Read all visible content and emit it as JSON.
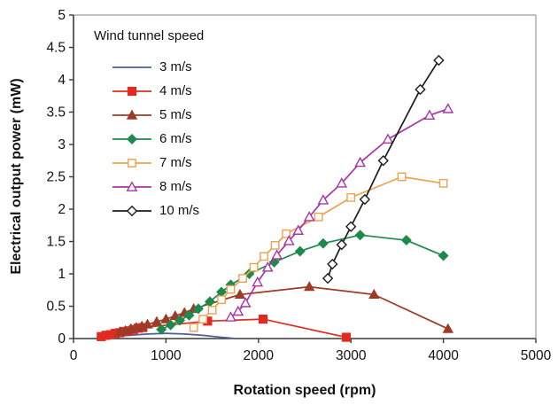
{
  "chart_data": {
    "type": "line",
    "title": "",
    "xlabel": "Rotation speed (rpm)",
    "ylabel": "Electrical output power (mW)",
    "xlim": [
      0,
      5000
    ],
    "ylim": [
      0,
      5
    ],
    "xticks": [
      0,
      1000,
      2000,
      3000,
      4000,
      5000
    ],
    "yticks": [
      0,
      0.5,
      1,
      1.5,
      2,
      2.5,
      3,
      3.5,
      4,
      4.5,
      5
    ],
    "grid": false,
    "legend_title": "Wind tunnel speed",
    "legend_position": "inside top-left",
    "axis_color": "#3a3a3a",
    "border_color": "#9a9a9a",
    "series": [
      {
        "name": "3 m/s",
        "color": "#4f5d99",
        "marker": "none",
        "points": [
          [
            250,
            0.01
          ],
          [
            400,
            0.03
          ],
          [
            600,
            0.05
          ],
          [
            800,
            0.07
          ],
          [
            1000,
            0.08
          ],
          [
            1200,
            0.07
          ],
          [
            1400,
            0.05
          ],
          [
            1600,
            0.02
          ],
          [
            1750,
            0.0
          ]
        ]
      },
      {
        "name": "4 m/s",
        "color": "#e02b20",
        "marker": "square",
        "points": [
          [
            300,
            0.03
          ],
          [
            350,
            0.05
          ],
          [
            400,
            0.06
          ],
          [
            450,
            0.08
          ],
          [
            500,
            0.09
          ],
          [
            550,
            0.11
          ],
          [
            600,
            0.12
          ],
          [
            650,
            0.14
          ],
          [
            700,
            0.16
          ],
          [
            750,
            0.17
          ],
          [
            1450,
            0.27
          ],
          [
            2050,
            0.3
          ],
          [
            2950,
            0.02
          ]
        ]
      },
      {
        "name": "5 m/s",
        "color": "#9e3a28",
        "marker": "triangle",
        "points": [
          [
            500,
            0.1
          ],
          [
            560,
            0.12
          ],
          [
            620,
            0.15
          ],
          [
            680,
            0.17
          ],
          [
            740,
            0.19
          ],
          [
            800,
            0.22
          ],
          [
            900,
            0.26
          ],
          [
            1000,
            0.3
          ],
          [
            1100,
            0.35
          ],
          [
            1200,
            0.4
          ],
          [
            1300,
            0.46
          ],
          [
            1800,
            0.68
          ],
          [
            2550,
            0.8
          ],
          [
            3250,
            0.68
          ],
          [
            4050,
            0.15
          ]
        ]
      },
      {
        "name": "6 m/s",
        "color": "#1d8a4b",
        "marker": "diamond",
        "points": [
          [
            950,
            0.14
          ],
          [
            1050,
            0.21
          ],
          [
            1150,
            0.28
          ],
          [
            1250,
            0.36
          ],
          [
            1350,
            0.46
          ],
          [
            1475,
            0.57
          ],
          [
            1600,
            0.72
          ],
          [
            1700,
            0.83
          ],
          [
            1900,
            1.0
          ],
          [
            2170,
            1.18
          ],
          [
            2450,
            1.35
          ],
          [
            2700,
            1.47
          ],
          [
            3100,
            1.6
          ],
          [
            3600,
            1.52
          ],
          [
            4000,
            1.28
          ]
        ]
      },
      {
        "name": "7 m/s",
        "color": "#efa150",
        "marker": "square-open",
        "points": [
          [
            1300,
            0.17
          ],
          [
            1400,
            0.3
          ],
          [
            1500,
            0.44
          ],
          [
            1600,
            0.6
          ],
          [
            1700,
            0.76
          ],
          [
            1830,
            0.93
          ],
          [
            1950,
            1.1
          ],
          [
            2060,
            1.27
          ],
          [
            2180,
            1.44
          ],
          [
            2300,
            1.62
          ],
          [
            2650,
            1.88
          ],
          [
            3000,
            2.18
          ],
          [
            3550,
            2.5
          ],
          [
            4000,
            2.4
          ]
        ]
      },
      {
        "name": "8 m/s",
        "color": "#a836a8",
        "marker": "triangle-open",
        "points": [
          [
            1700,
            0.33
          ],
          [
            1780,
            0.42
          ],
          [
            1860,
            0.55
          ],
          [
            1990,
            0.87
          ],
          [
            2100,
            1.1
          ],
          [
            2200,
            1.29
          ],
          [
            2330,
            1.51
          ],
          [
            2430,
            1.67
          ],
          [
            2550,
            1.88
          ],
          [
            2700,
            2.14
          ],
          [
            2900,
            2.4
          ],
          [
            3100,
            2.72
          ],
          [
            3400,
            3.08
          ],
          [
            3850,
            3.45
          ],
          [
            4050,
            3.55
          ]
        ]
      },
      {
        "name": "10 m/s",
        "color": "#1c1c1c",
        "marker": "diamond-open",
        "points": [
          [
            2750,
            0.93
          ],
          [
            2800,
            1.15
          ],
          [
            2900,
            1.45
          ],
          [
            3000,
            1.73
          ],
          [
            3150,
            2.15
          ],
          [
            3350,
            2.75
          ],
          [
            3750,
            3.85
          ],
          [
            3950,
            4.3
          ]
        ]
      }
    ]
  }
}
